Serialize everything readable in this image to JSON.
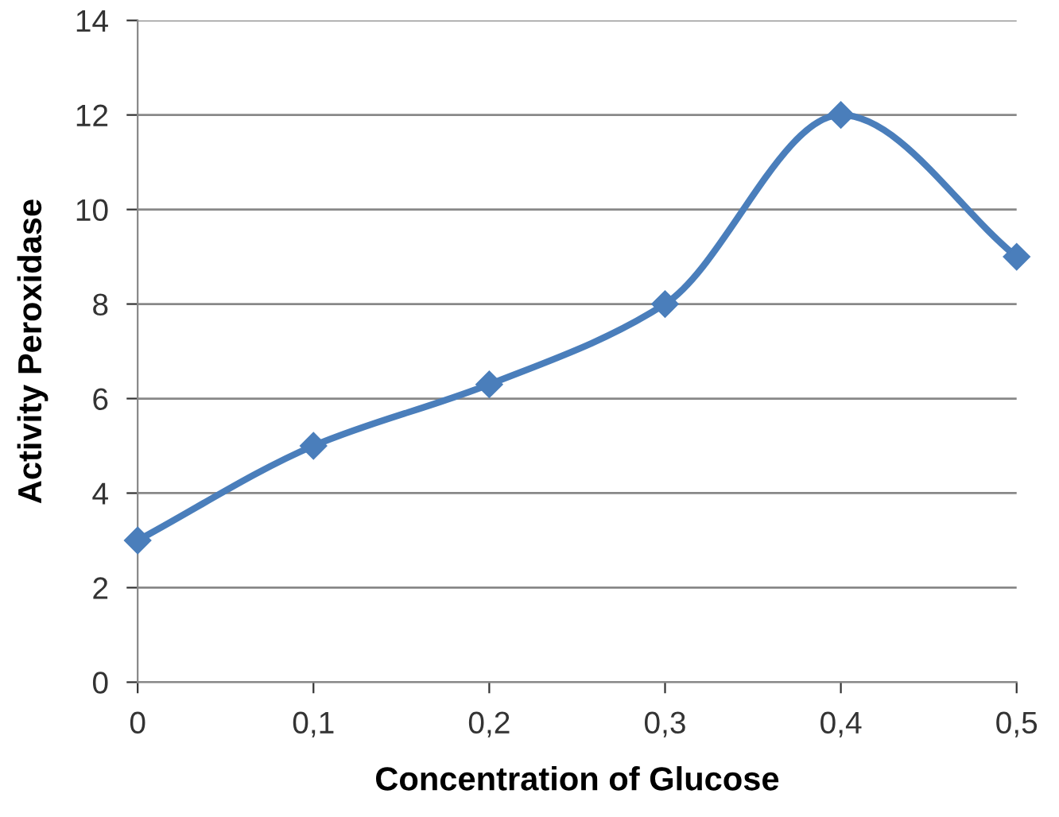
{
  "chart_data": {
    "type": "line",
    "xlabel": "Concentration of Glucose",
    "ylabel": "Activity Peroxidase",
    "x": [
      0,
      0.1,
      0.2,
      0.3,
      0.4,
      0.5
    ],
    "series": [
      {
        "color": "#4a7ebb",
        "values": [
          3,
          5,
          6.3,
          8,
          12,
          9
        ]
      }
    ],
    "xlim": [
      0,
      0.5
    ],
    "xticks": [
      0,
      {
        "value": 0.1,
        "label": "0,1"
      },
      {
        "value": 0.2,
        "label": "0,2"
      },
      {
        "value": 0.3,
        "label": "0,3"
      },
      {
        "value": 0.4,
        "label": "0,4"
      },
      {
        "value": 0.5,
        "label": "0,5"
      }
    ],
    "ylim": [
      0,
      14
    ],
    "yticks": [
      0,
      2,
      4,
      6,
      8,
      10,
      12,
      14
    ],
    "grid": "y",
    "marker": "diamond",
    "line_style": "solid"
  }
}
